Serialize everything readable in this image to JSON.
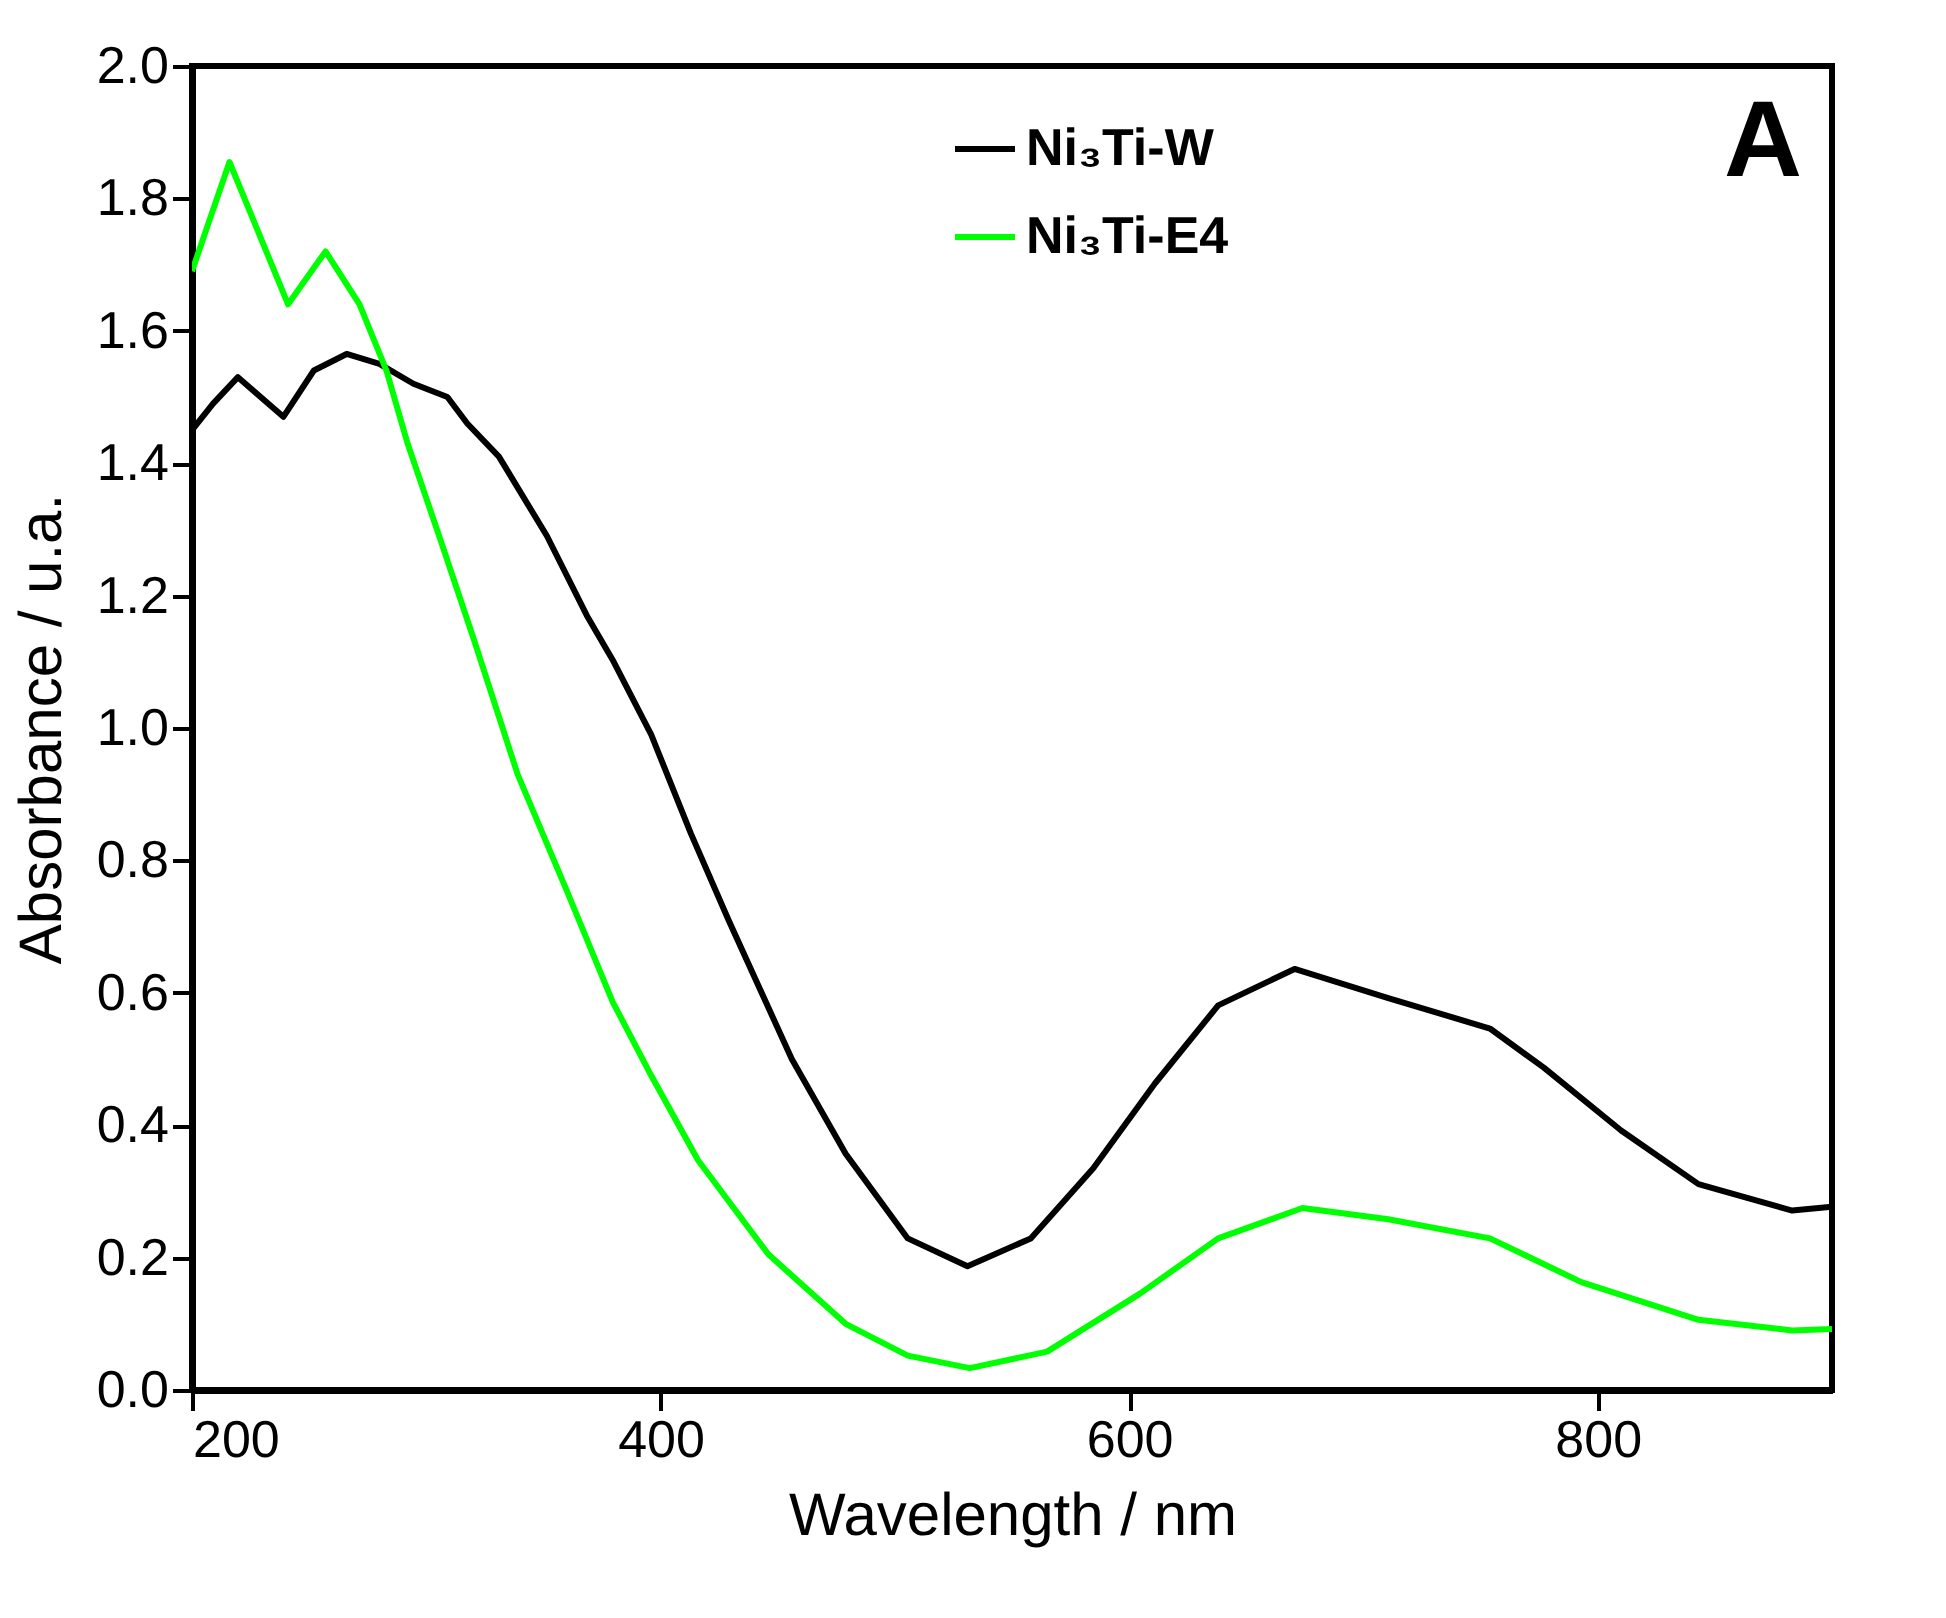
{
  "chart_data": {
    "type": "line",
    "xlabel": "Wavelength / nm",
    "ylabel": "Absorbance / u.a.",
    "annotations": [
      "A"
    ],
    "xlim": [
      200,
      900
    ],
    "xticks": [
      200,
      400,
      600,
      800
    ],
    "ylim": [
      0,
      2.0
    ],
    "yticks": [
      {
        "value": 0,
        "label": "0.0"
      },
      0.2,
      0.4,
      0.6,
      0.8,
      {
        "value": 1,
        "label": "1.0"
      },
      1.2,
      1.4,
      1.6,
      1.8,
      {
        "value": 2,
        "label": "2.0"
      }
    ],
    "legend": "top right",
    "grid": false,
    "line_style": "solid",
    "marker": "none",
    "series": [
      {
        "name": "Ni₃Ti-W",
        "color": "#000000",
        "x": [
          200,
          209,
          219.6,
          239,
          252,
          266,
          280,
          294.5,
          309,
          317.5,
          331,
          351.5,
          368.5,
          380,
          396,
          413,
          429,
          456,
          479,
          505.5,
          531,
          558,
          584.7,
          611,
          638,
          670.6,
          710.6,
          754,
          777,
          810,
          843,
          883,
          900
        ],
        "values": [
          1.45,
          1.49,
          1.53,
          1.47,
          1.54,
          1.565,
          1.55,
          1.52,
          1.5,
          1.46,
          1.41,
          1.29,
          1.17,
          1.1,
          0.99,
          0.84,
          0.71,
          0.5,
          0.357,
          0.229,
          0.187,
          0.229,
          0.335,
          0.463,
          0.581,
          0.636,
          0.592,
          0.546,
          0.487,
          0.392,
          0.311,
          0.271,
          0.277
        ]
      },
      {
        "name": "Ni₃Ti-E4",
        "color": "#00ff00",
        "x": [
          200,
          216,
          241,
          257,
          271.5,
          283,
          292,
          305.5,
          320,
          339,
          360,
          379.6,
          396,
          416,
          446,
          479,
          505.5,
          532,
          565,
          604.8,
          638,
          674,
          710.6,
          754,
          793,
          843,
          883,
          900
        ],
        "values": [
          1.69,
          1.855,
          1.64,
          1.72,
          1.64,
          1.54,
          1.43,
          1.29,
          1.137,
          0.93,
          0.754,
          0.586,
          0.475,
          0.347,
          0.205,
          0.1,
          0.052,
          0.033,
          0.058,
          0.146,
          0.229,
          0.275,
          0.258,
          0.229,
          0.163,
          0.106,
          0.09,
          0.092
        ]
      }
    ]
  }
}
